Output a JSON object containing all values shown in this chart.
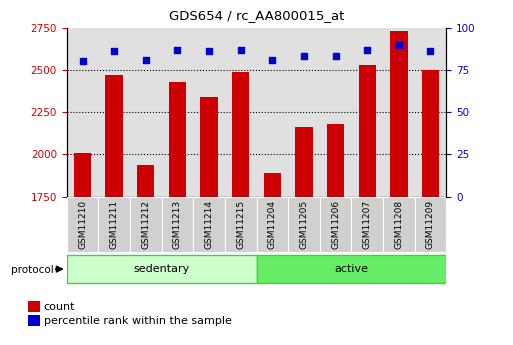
{
  "title": "GDS654 / rc_AA800015_at",
  "samples": [
    "GSM11210",
    "GSM11211",
    "GSM11212",
    "GSM11213",
    "GSM11214",
    "GSM11215",
    "GSM11204",
    "GSM11205",
    "GSM11206",
    "GSM11207",
    "GSM11208",
    "GSM11209"
  ],
  "counts": [
    2010,
    2470,
    1940,
    2430,
    2340,
    2490,
    1890,
    2160,
    2180,
    2530,
    2730,
    2500
  ],
  "percentiles": [
    80,
    86,
    81,
    87,
    86,
    87,
    81,
    83,
    83,
    87,
    90,
    86
  ],
  "groups": [
    "sedentary",
    "sedentary",
    "sedentary",
    "sedentary",
    "sedentary",
    "sedentary",
    "active",
    "active",
    "active",
    "active",
    "active",
    "active"
  ],
  "group_colors": {
    "sedentary": "#ccffcc",
    "active": "#66ee66"
  },
  "bar_color": "#cc0000",
  "dot_color": "#0000cc",
  "ylim_left": [
    1750,
    2750
  ],
  "ylim_right": [
    0,
    100
  ],
  "yticks_left": [
    1750,
    2000,
    2250,
    2500,
    2750
  ],
  "yticks_right": [
    0,
    25,
    50,
    75,
    100
  ],
  "legend_count_label": "count",
  "legend_pct_label": "percentile rank within the sample",
  "protocol_label": "protocol",
  "dotted_line_values": [
    2000,
    2250,
    2500
  ]
}
